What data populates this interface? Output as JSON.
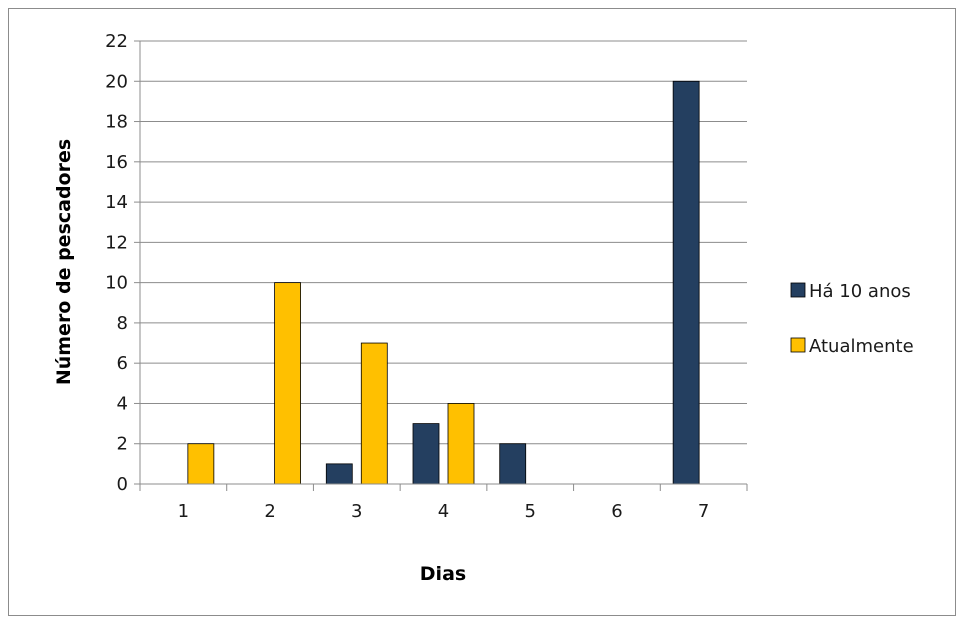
{
  "chart_data": {
    "type": "bar",
    "title": "",
    "xlabel": "Dias",
    "ylabel": "Número de pescadores",
    "categories": [
      "1",
      "2",
      "3",
      "4",
      "5",
      "6",
      "7"
    ],
    "series": [
      {
        "name": "Há 10 anos",
        "values": [
          0,
          0,
          1,
          3,
          2,
          0,
          20
        ],
        "color": "#243f60"
      },
      {
        "name": "Atualmente",
        "values": [
          2,
          10,
          7,
          4,
          0,
          0,
          0
        ],
        "color": "#ffc000"
      }
    ],
    "ylim": [
      0,
      22
    ],
    "yticks": [
      0,
      2,
      4,
      6,
      8,
      10,
      12,
      14,
      16,
      18,
      20,
      22
    ],
    "grid": true,
    "legend_position": "right"
  }
}
